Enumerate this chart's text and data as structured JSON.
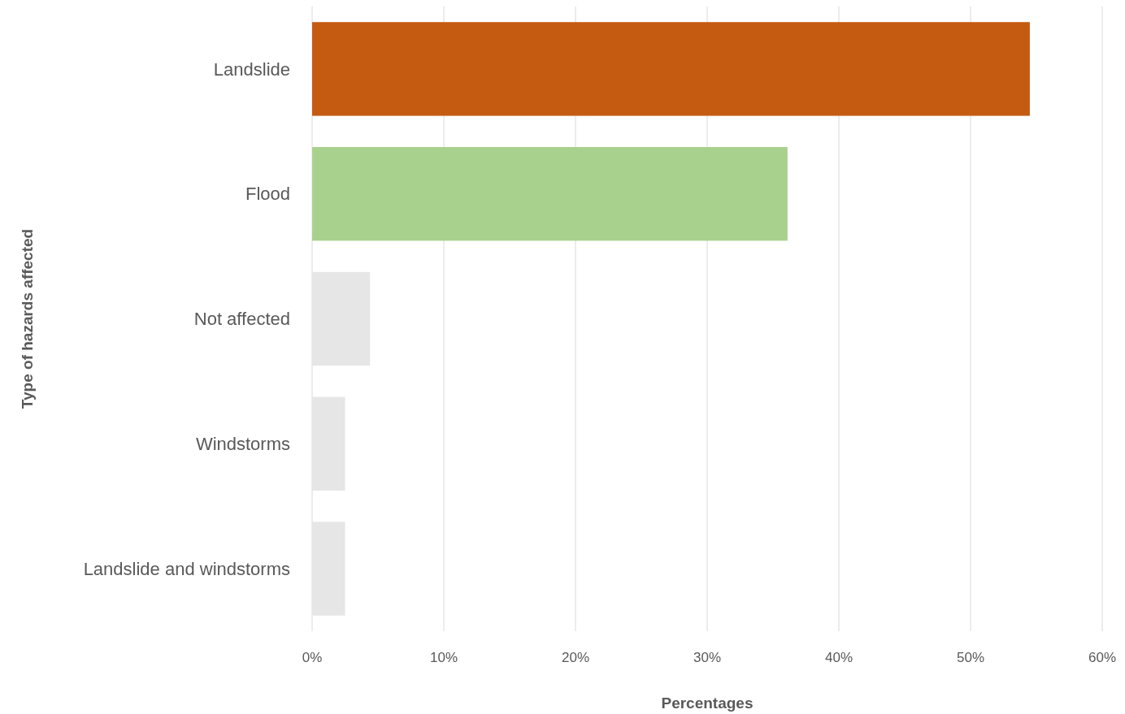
{
  "chart_data": {
    "type": "bar",
    "orientation": "horizontal",
    "xlabel": "Percentages",
    "ylabel": "Type of hazards affected",
    "categories": [
      "Landslide",
      "Flood",
      "Not affected",
      "Windstorms",
      "Landslide and windstorms"
    ],
    "values": [
      54.5,
      36.1,
      4.4,
      2.5,
      2.5
    ],
    "colors": [
      "#c55a11",
      "#a9d18e",
      "#e7e6e6",
      "#e7e6e6",
      "#e7e6e6"
    ],
    "xlim": [
      0,
      60
    ],
    "xticks": [
      {
        "value": 0,
        "label": "0%"
      },
      {
        "value": 10,
        "label": "10%"
      },
      {
        "value": 20,
        "label": "20%"
      },
      {
        "value": 30,
        "label": "30%"
      },
      {
        "value": 40,
        "label": "40%"
      },
      {
        "value": 50,
        "label": "50%"
      },
      {
        "value": 60,
        "label": "60%"
      }
    ],
    "grid": "x"
  }
}
